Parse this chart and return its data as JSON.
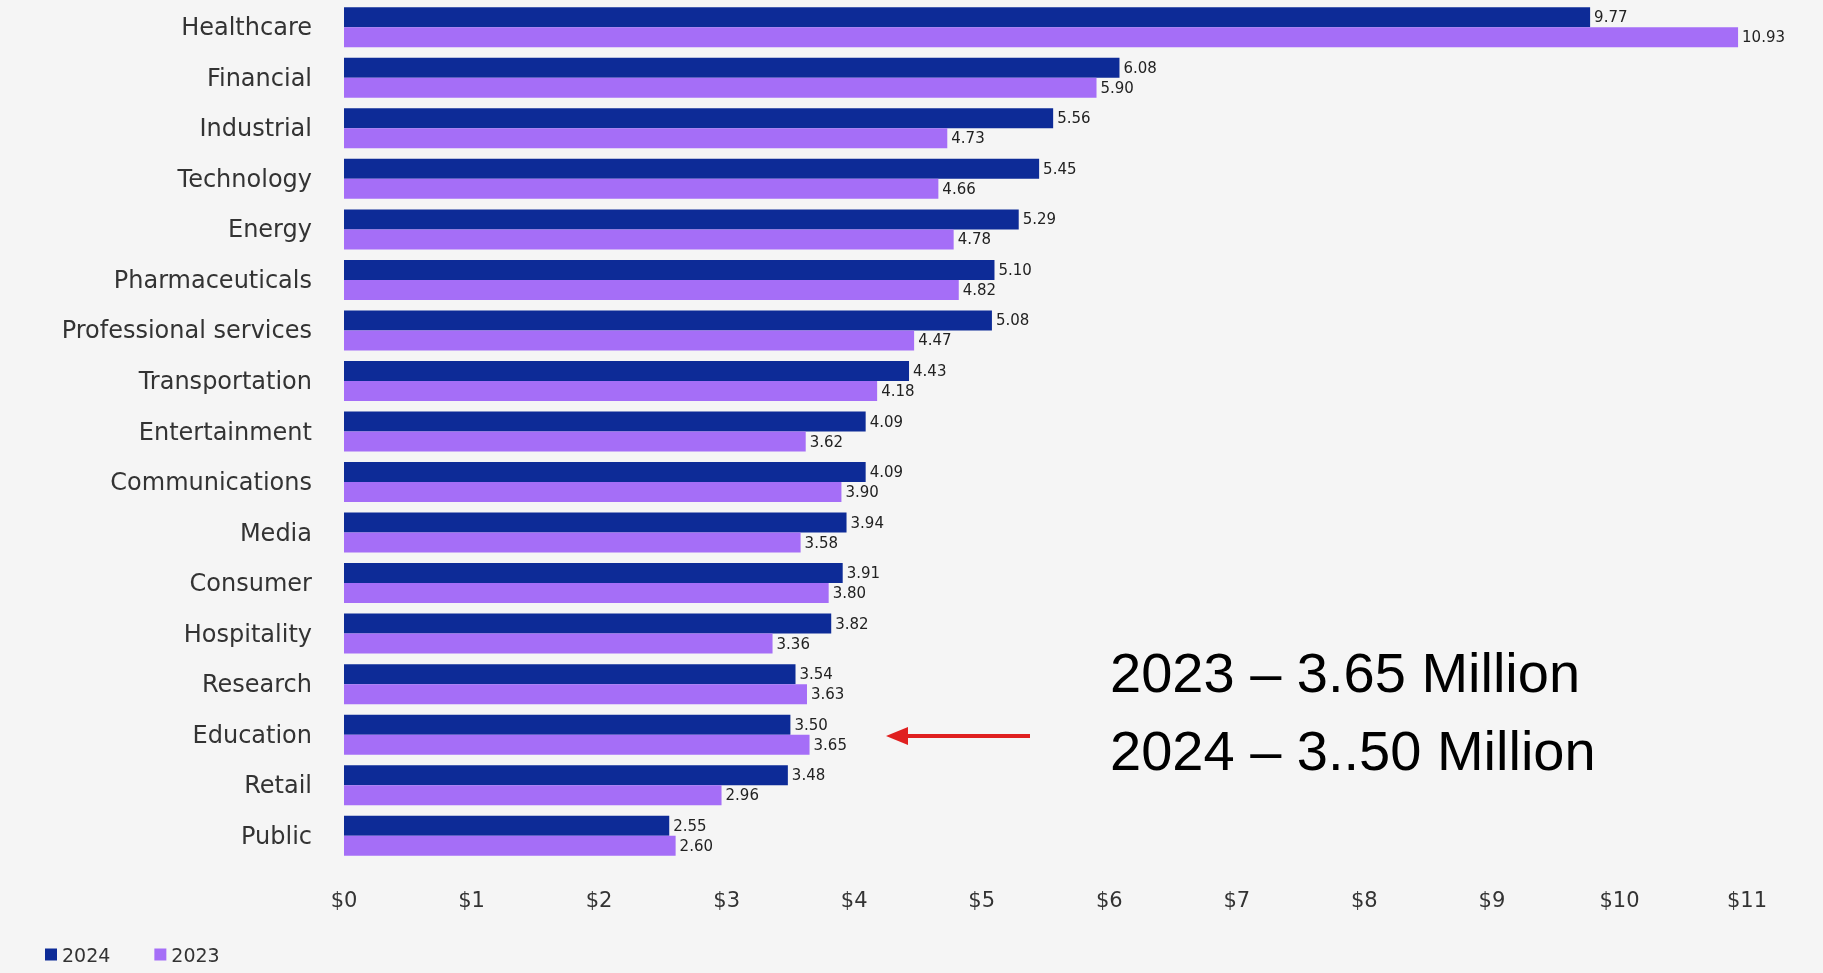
{
  "chart_data": {
    "type": "bar",
    "orientation": "horizontal",
    "categories": [
      "Healthcare",
      "Financial",
      "Industrial",
      "Technology",
      "Energy",
      "Pharmaceuticals",
      "Professional services",
      "Transportation",
      "Entertainment",
      "Communications",
      "Media",
      "Consumer",
      "Hospitality",
      "Research",
      "Education",
      "Retail",
      "Public"
    ],
    "series": [
      {
        "name": "2024",
        "color": "#0d2b97",
        "values": [
          9.77,
          6.08,
          5.56,
          5.45,
          5.29,
          5.1,
          5.08,
          4.43,
          4.09,
          4.09,
          3.94,
          3.91,
          3.82,
          3.54,
          3.5,
          3.48,
          2.55
        ],
        "value_labels": [
          "9.77",
          "6.08",
          "5.56",
          "5.45",
          "5.29",
          "5.10",
          "5.08",
          "4.43",
          "4.09",
          "4.09",
          "3.94",
          "3.91",
          "3.82",
          "3.54",
          "3.50",
          "3.48",
          "2.55"
        ]
      },
      {
        "name": "2023",
        "color": "#a56ef7",
        "values": [
          10.93,
          5.9,
          4.73,
          4.66,
          4.78,
          4.82,
          4.47,
          4.18,
          3.62,
          3.9,
          3.58,
          3.8,
          3.36,
          3.63,
          3.65,
          2.96,
          2.6
        ],
        "value_labels": [
          "10.93",
          "5.90",
          "4.73",
          "4.66",
          "4.78",
          "4.82",
          "4.47",
          "4.18",
          "3.62",
          "3.90",
          "3.58",
          "3.80",
          "3.36",
          "3.63",
          "3.65",
          "2.96",
          "2.60"
        ]
      }
    ],
    "xlim": [
      0,
      11
    ],
    "xticks": [
      {
        "value": 0,
        "label": "$0"
      },
      {
        "value": 1,
        "label": "$1"
      },
      {
        "value": 2,
        "label": "$2"
      },
      {
        "value": 3,
        "label": "$3"
      },
      {
        "value": 4,
        "label": "$4"
      },
      {
        "value": 5,
        "label": "$5"
      },
      {
        "value": 6,
        "label": "$6"
      },
      {
        "value": 7,
        "label": "$7"
      },
      {
        "value": 8,
        "label": "$8"
      },
      {
        "value": 9,
        "label": "$9"
      },
      {
        "value": 10,
        "label": "$10"
      },
      {
        "value": 11,
        "label": "$11"
      }
    ],
    "grid": false,
    "legend": "bottom left",
    "annotations": [
      "2023 – 3.65 Million",
      "2024 – 3..50 Million"
    ]
  }
}
